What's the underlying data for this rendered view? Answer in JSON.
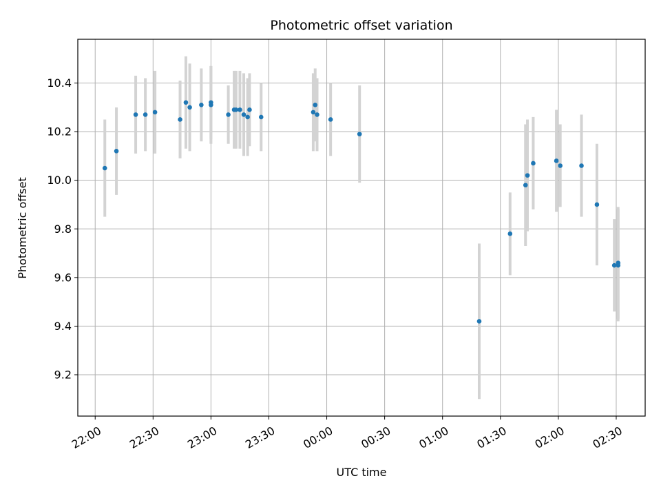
{
  "chart_data": {
    "type": "scatter",
    "title": "Photometric offset variation",
    "xlabel": "UTC time",
    "ylabel": "Photometric offset",
    "x_unit": "UTC time (HH:MM)",
    "xlim": [
      "21:51",
      "02:45"
    ],
    "ylim": [
      9.03,
      10.58
    ],
    "x_ticks": [
      "22:00",
      "22:30",
      "23:00",
      "23:30",
      "00:00",
      "00:30",
      "01:00",
      "01:30",
      "02:00",
      "02:30"
    ],
    "y_ticks": [
      "9.2",
      "9.4",
      "9.6",
      "9.8",
      "10.0",
      "10.2",
      "10.4"
    ],
    "grid": true,
    "marker_color": "#1f77b4",
    "errorbar_color": "#d3d3d3",
    "points": [
      {
        "x": "22:05",
        "y": 10.05,
        "err": 0.2
      },
      {
        "x": "22:11",
        "y": 10.12,
        "err": 0.18
      },
      {
        "x": "22:21",
        "y": 10.27,
        "err": 0.16
      },
      {
        "x": "22:26",
        "y": 10.27,
        "err": 0.15
      },
      {
        "x": "22:31",
        "y": 10.28,
        "err": 0.17
      },
      {
        "x": "22:44",
        "y": 10.25,
        "err": 0.16
      },
      {
        "x": "22:47",
        "y": 10.32,
        "err": 0.19
      },
      {
        "x": "22:49",
        "y": 10.3,
        "err": 0.18
      },
      {
        "x": "22:55",
        "y": 10.31,
        "err": 0.15
      },
      {
        "x": "23:00",
        "y": 10.32,
        "err": 0.15
      },
      {
        "x": "23:00",
        "y": 10.31,
        "err": 0.16
      },
      {
        "x": "23:09",
        "y": 10.27,
        "err": 0.12
      },
      {
        "x": "23:12",
        "y": 10.29,
        "err": 0.16
      },
      {
        "x": "23:13",
        "y": 10.29,
        "err": 0.16
      },
      {
        "x": "23:15",
        "y": 10.29,
        "err": 0.16
      },
      {
        "x": "23:17",
        "y": 10.27,
        "err": 0.17
      },
      {
        "x": "23:19",
        "y": 10.26,
        "err": 0.16
      },
      {
        "x": "23:20",
        "y": 10.29,
        "err": 0.15
      },
      {
        "x": "23:26",
        "y": 10.26,
        "err": 0.14
      },
      {
        "x": "23:53",
        "y": 10.28,
        "err": 0.16
      },
      {
        "x": "23:54",
        "y": 10.31,
        "err": 0.15
      },
      {
        "x": "23:55",
        "y": 10.27,
        "err": 0.15
      },
      {
        "x": "00:02",
        "y": 10.25,
        "err": 0.15
      },
      {
        "x": "00:17",
        "y": 10.19,
        "err": 0.2
      },
      {
        "x": "01:19",
        "y": 9.42,
        "err": 0.32
      },
      {
        "x": "01:35",
        "y": 9.78,
        "err": 0.17
      },
      {
        "x": "01:43",
        "y": 9.98,
        "err": 0.25
      },
      {
        "x": "01:44",
        "y": 10.02,
        "err": 0.23
      },
      {
        "x": "01:47",
        "y": 10.07,
        "err": 0.19
      },
      {
        "x": "01:59",
        "y": 10.08,
        "err": 0.21
      },
      {
        "x": "02:01",
        "y": 10.06,
        "err": 0.17
      },
      {
        "x": "02:12",
        "y": 10.06,
        "err": 0.21
      },
      {
        "x": "02:20",
        "y": 9.9,
        "err": 0.25
      },
      {
        "x": "02:29",
        "y": 9.65,
        "err": 0.19
      },
      {
        "x": "02:31",
        "y": 9.65,
        "err": 0.23
      },
      {
        "x": "02:31",
        "y": 9.66,
        "err": 0.23
      }
    ]
  }
}
